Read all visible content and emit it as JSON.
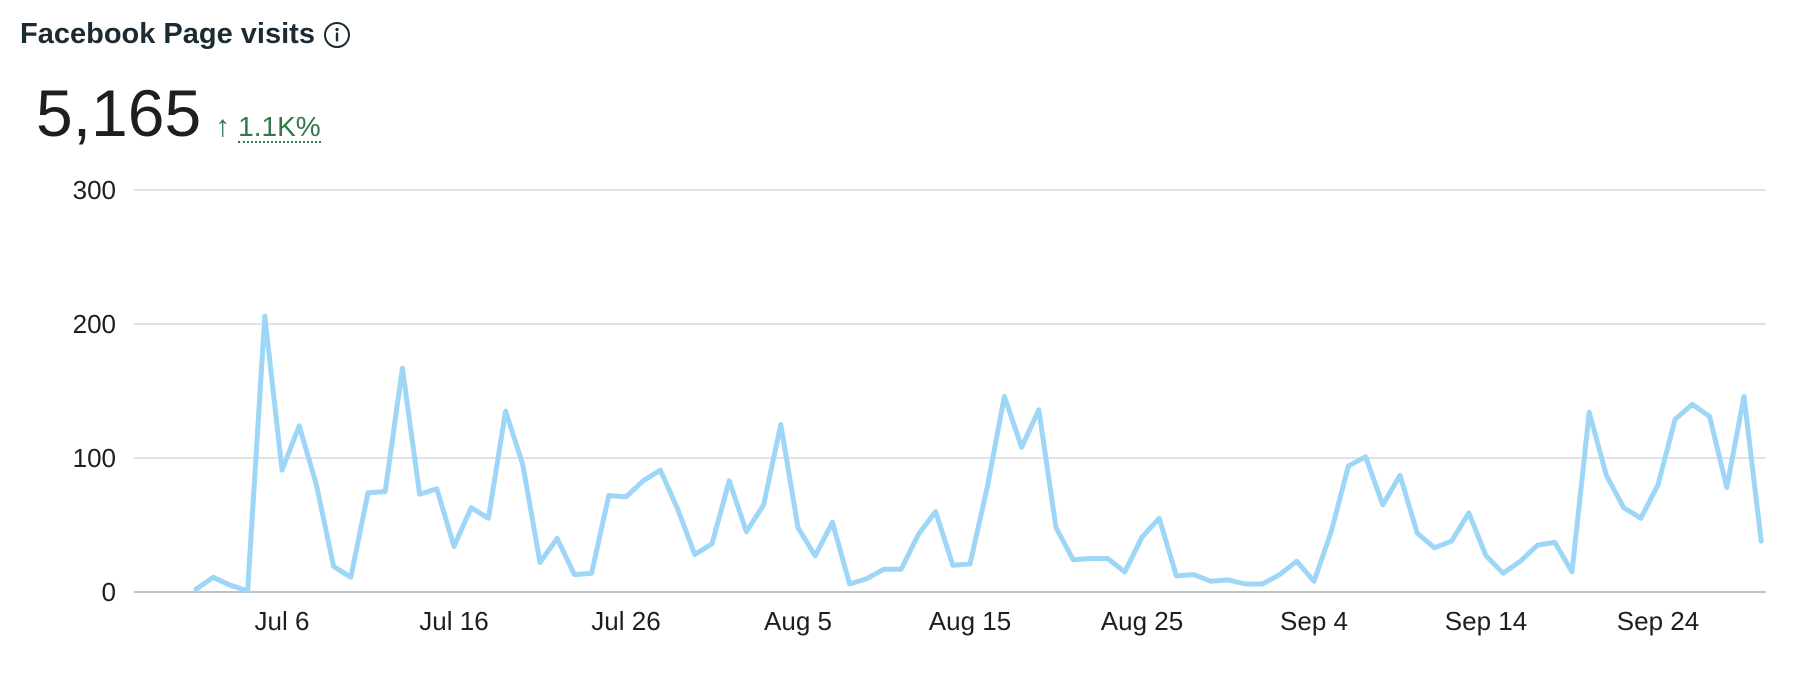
{
  "header": {
    "title": "Facebook Page visits",
    "info_icon": "info-circle-icon"
  },
  "stat": {
    "value": "5,165",
    "delta_arrow_icon": "arrow-up-icon",
    "delta_arrow": "↑",
    "delta": "1.1K%",
    "delta_color": "#31784b"
  },
  "colors": {
    "line": "#9ed6f7",
    "grid": "#d7d9dc",
    "axis": "#bfc2c6"
  },
  "chart_data": {
    "type": "line",
    "title": "",
    "xlabel": "",
    "ylabel": "",
    "ylim": [
      0,
      300
    ],
    "yticks": [
      0,
      100,
      200,
      300
    ],
    "xticks": [
      "Jul 6",
      "Jul 16",
      "Jul 26",
      "Aug 5",
      "Aug 15",
      "Aug 25",
      "Sep 4",
      "Sep 14",
      "Sep 24"
    ],
    "xtick_days": [
      5,
      15,
      25,
      35,
      45,
      55,
      65,
      75,
      85
    ],
    "grid": true,
    "series": [
      {
        "values": [
          2,
          11,
          5,
          1,
          206,
          91,
          124,
          80,
          19,
          11,
          74,
          75,
          167,
          73,
          77,
          34,
          63,
          55,
          135,
          95,
          22,
          40,
          13,
          14,
          72,
          71,
          83,
          91,
          62,
          28,
          36,
          83,
          45,
          65,
          125,
          48,
          27,
          52,
          6,
          10,
          17,
          17,
          43,
          60,
          20,
          21,
          78,
          146,
          108,
          136,
          48,
          24,
          25,
          25,
          15,
          41,
          55,
          12,
          13,
          8,
          9,
          6,
          6,
          13,
          23,
          8,
          45,
          94,
          101,
          65,
          87,
          44,
          33,
          38,
          59,
          27,
          14,
          23,
          35,
          37,
          15,
          134,
          87,
          63,
          55,
          80,
          129,
          140,
          131,
          78,
          146,
          38
        ]
      }
    ]
  }
}
